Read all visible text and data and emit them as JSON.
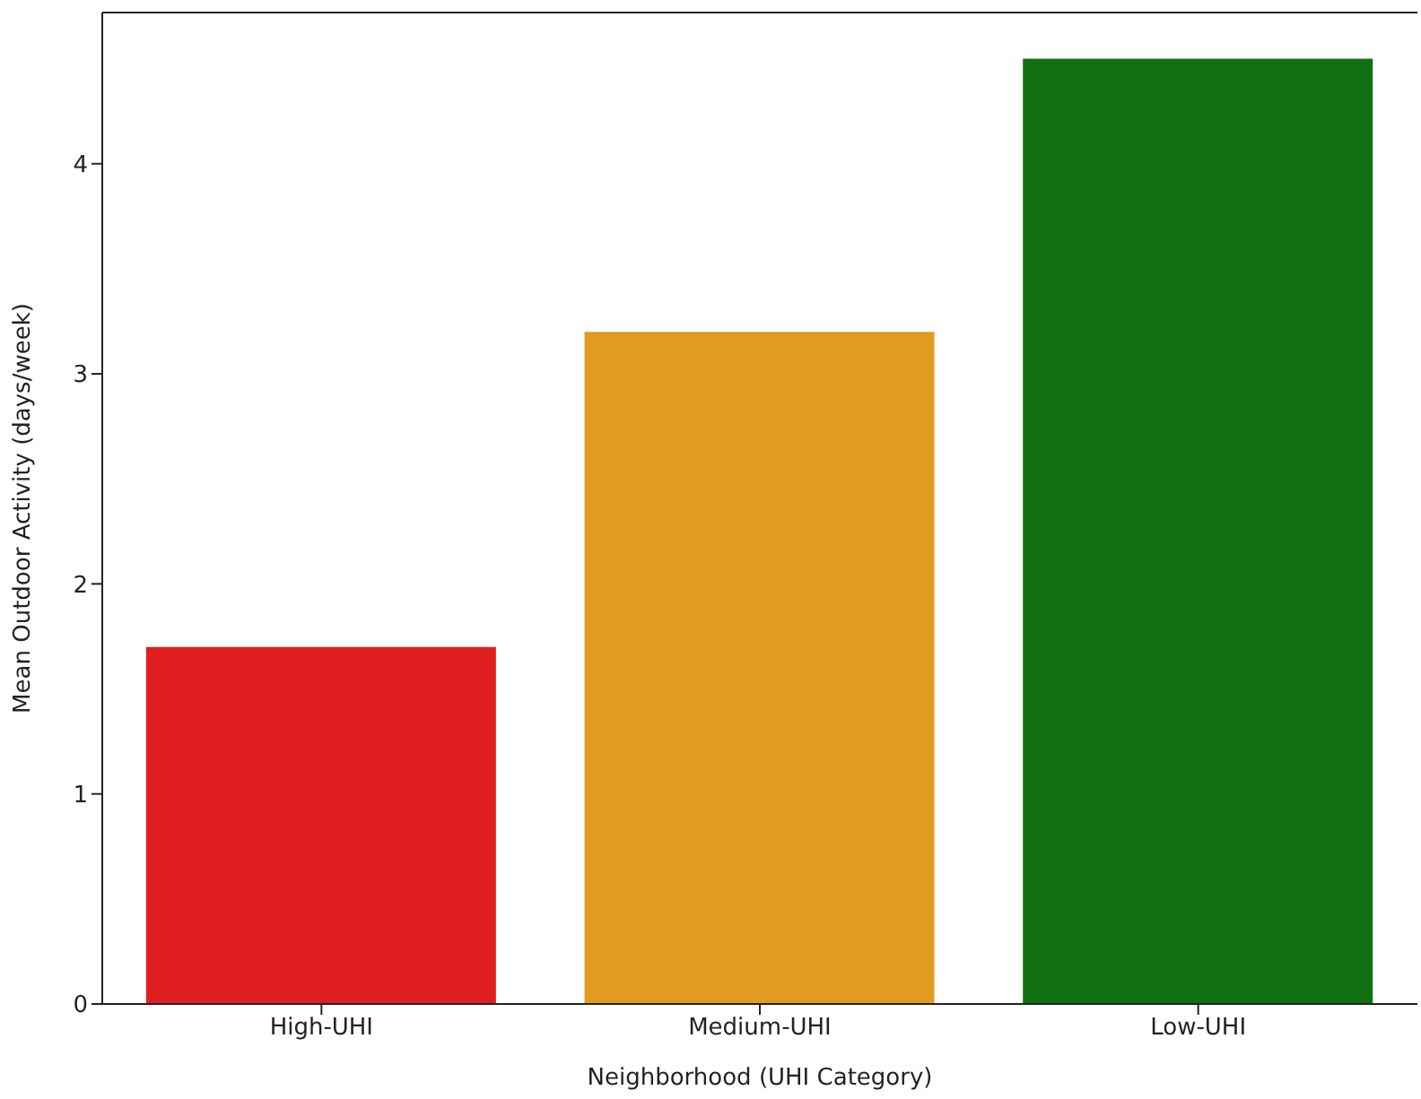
{
  "chart_data": {
    "type": "bar",
    "xlabel": "Neighborhood (UHI Category)",
    "ylabel": "Mean Outdoor Activity (days/week)",
    "categories": [
      "High-UHI",
      "Medium-UHI",
      "Low-UHI"
    ],
    "values": [
      1.7,
      3.2,
      4.5
    ],
    "colors": [
      "#e02020",
      "#e09c20",
      "#117011"
    ],
    "ylim": [
      0,
      4.72
    ],
    "yticks": [
      0,
      1,
      2,
      3,
      4
    ],
    "grid": false,
    "legend": false
  }
}
